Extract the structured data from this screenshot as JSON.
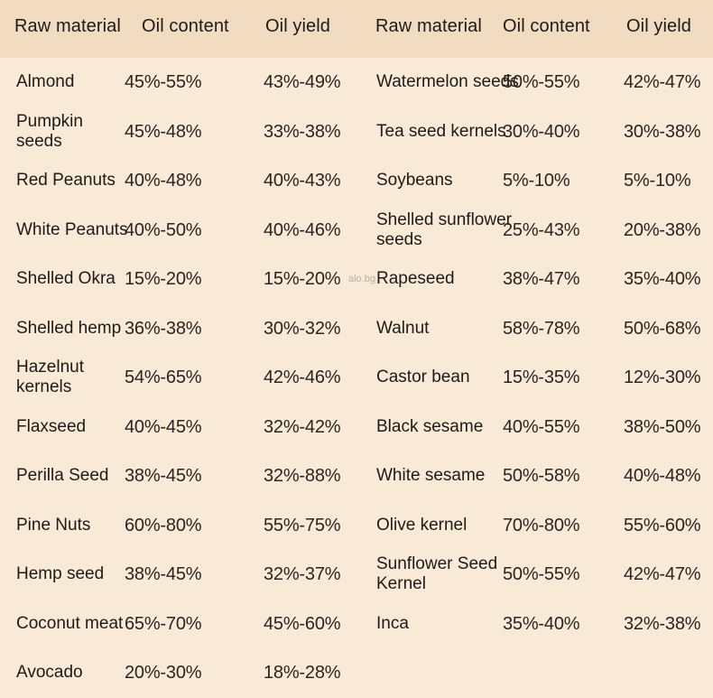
{
  "headers": {
    "left": [
      "Raw material",
      "Oil content",
      "Oil yield"
    ],
    "right": [
      "Raw material",
      "Oil content",
      "Oil yield"
    ]
  },
  "left_rows": [
    {
      "name": "Almond",
      "oil_content": "45%-55%",
      "oil_yield": "43%-49%"
    },
    {
      "name": "Pumpkin seeds",
      "oil_content": "45%-48%",
      "oil_yield": "33%-38%"
    },
    {
      "name": "Red Peanuts",
      "oil_content": "40%-48%",
      "oil_yield": "40%-43%"
    },
    {
      "name": "White Peanuts",
      "oil_content": "40%-50%",
      "oil_yield": "40%-46%"
    },
    {
      "name": "Shelled Okra",
      "oil_content": "15%-20%",
      "oil_yield": "15%-20%"
    },
    {
      "name": "Shelled hemp",
      "oil_content": "36%-38%",
      "oil_yield": "30%-32%"
    },
    {
      "name": "Hazelnut kernels",
      "oil_content": "54%-65%",
      "oil_yield": "42%-46%"
    },
    {
      "name": "Flaxseed",
      "oil_content": "40%-45%",
      "oil_yield": "32%-42%"
    },
    {
      "name": "Perilla Seed",
      "oil_content": "38%-45%",
      "oil_yield": "32%-88%"
    },
    {
      "name": "Pine Nuts",
      "oil_content": "60%-80%",
      "oil_yield": "55%-75%"
    },
    {
      "name": "Hemp seed",
      "oil_content": "38%-45%",
      "oil_yield": "32%-37%"
    },
    {
      "name": "Coconut meat",
      "oil_content": "65%-70%",
      "oil_yield": "45%-60%"
    },
    {
      "name": "Avocado",
      "oil_content": "20%-30%",
      "oil_yield": "18%-28%"
    }
  ],
  "right_rows": [
    {
      "name": "Watermelon seeds",
      "oil_content": "50%-55%",
      "oil_yield": "42%-47%"
    },
    {
      "name": "Tea seed kernels",
      "oil_content": "30%-40%",
      "oil_yield": "30%-38%"
    },
    {
      "name": "Soybeans",
      "oil_content": "5%-10%",
      "oil_yield": "5%-10%"
    },
    {
      "name": "Shelled sunflower seeds",
      "oil_content": "25%-43%",
      "oil_yield": "20%-38%"
    },
    {
      "name": "Rapeseed",
      "oil_content": "38%-47%",
      "oil_yield": "35%-40%"
    },
    {
      "name": "Walnut",
      "oil_content": "58%-78%",
      "oil_yield": "50%-68%"
    },
    {
      "name": "Castor bean",
      "oil_content": "15%-35%",
      "oil_yield": "12%-30%"
    },
    {
      "name": "Black sesame",
      "oil_content": "40%-55%",
      "oil_yield": "38%-50%"
    },
    {
      "name": "White sesame",
      "oil_content": "50%-58%",
      "oil_yield": "40%-48%"
    },
    {
      "name": "Olive kernel",
      "oil_content": "70%-80%",
      "oil_yield": "55%-60%"
    },
    {
      "name": "Sunflower Seed Kernel",
      "oil_content": "50%-55%",
      "oil_yield": "42%-47%"
    },
    {
      "name": "Inca",
      "oil_content": "35%-40%",
      "oil_yield": "32%-38%"
    }
  ],
  "watermark": "alo.bg"
}
